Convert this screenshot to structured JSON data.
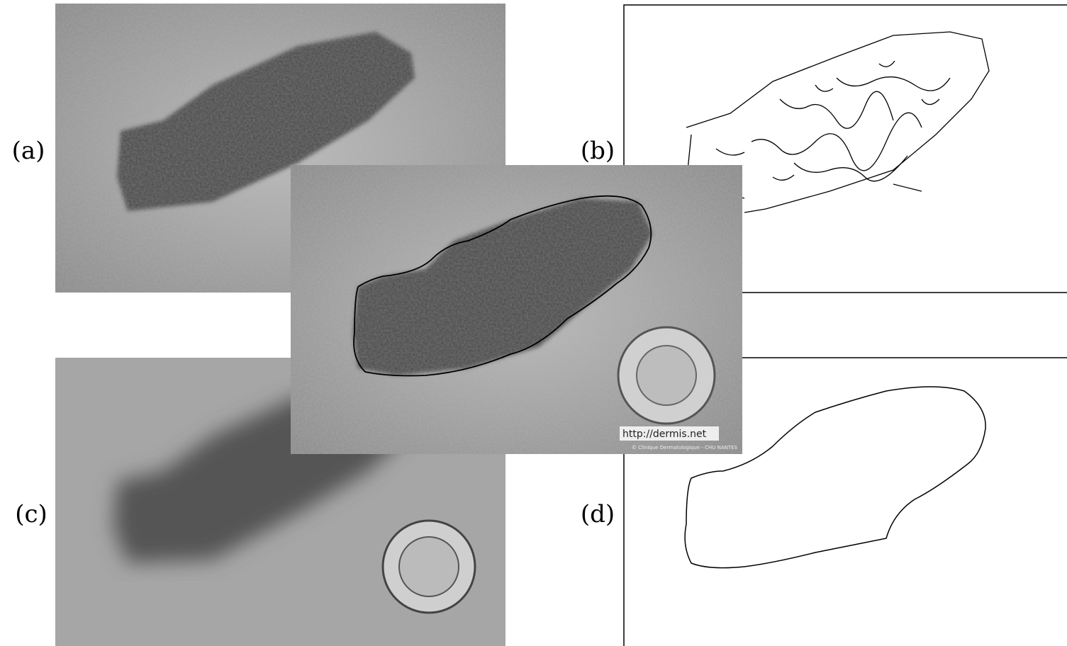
{
  "panels": {
    "a": "(a)",
    "b": "(b)",
    "c": "(c)",
    "d": "(d)"
  },
  "watermark": {
    "url": "http://dermis.net",
    "credit": "© Clinique Dermatologique - CHU NANTES"
  }
}
